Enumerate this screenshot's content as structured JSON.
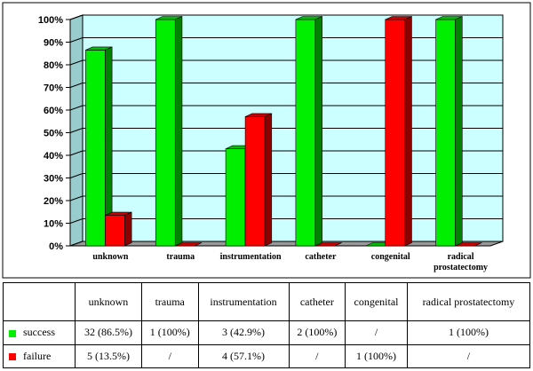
{
  "chart_data": {
    "type": "bar",
    "categories": [
      "unknown",
      "trauma",
      "instrumentation",
      "catheter",
      "congenital",
      "radical prostatectomy"
    ],
    "series": [
      {
        "name": "success",
        "values": [
          86.5,
          100,
          42.9,
          100,
          0,
          100
        ],
        "color": "#00ee00"
      },
      {
        "name": "failure",
        "values": [
          13.5,
          0,
          57.1,
          0,
          100,
          0
        ],
        "color": "#ff0000"
      }
    ],
    "ylim": [
      0,
      100
    ],
    "yticks": [
      "0%",
      "10%",
      "20%",
      "30%",
      "40%",
      "50%",
      "60%",
      "70%",
      "80%",
      "90%",
      "100%"
    ],
    "plot_background": "#ccffff",
    "grid": true,
    "bar_style": "3d",
    "legend": "in data table"
  },
  "table": {
    "headers": [
      "unknown",
      "trauma",
      "instrumentation",
      "catheter",
      "congenital",
      "radical prostatectomy"
    ],
    "rows": [
      {
        "label": "success",
        "cells": [
          "32 (86.5%)",
          "1 (100%)",
          "3 (42.9%)",
          "2 (100%)",
          "/",
          "1 (100%)"
        ]
      },
      {
        "label": "failure",
        "cells": [
          "5 (13.5%)",
          "/",
          "4 (57.1%)",
          "/",
          "1 (100%)",
          "/"
        ]
      }
    ]
  }
}
